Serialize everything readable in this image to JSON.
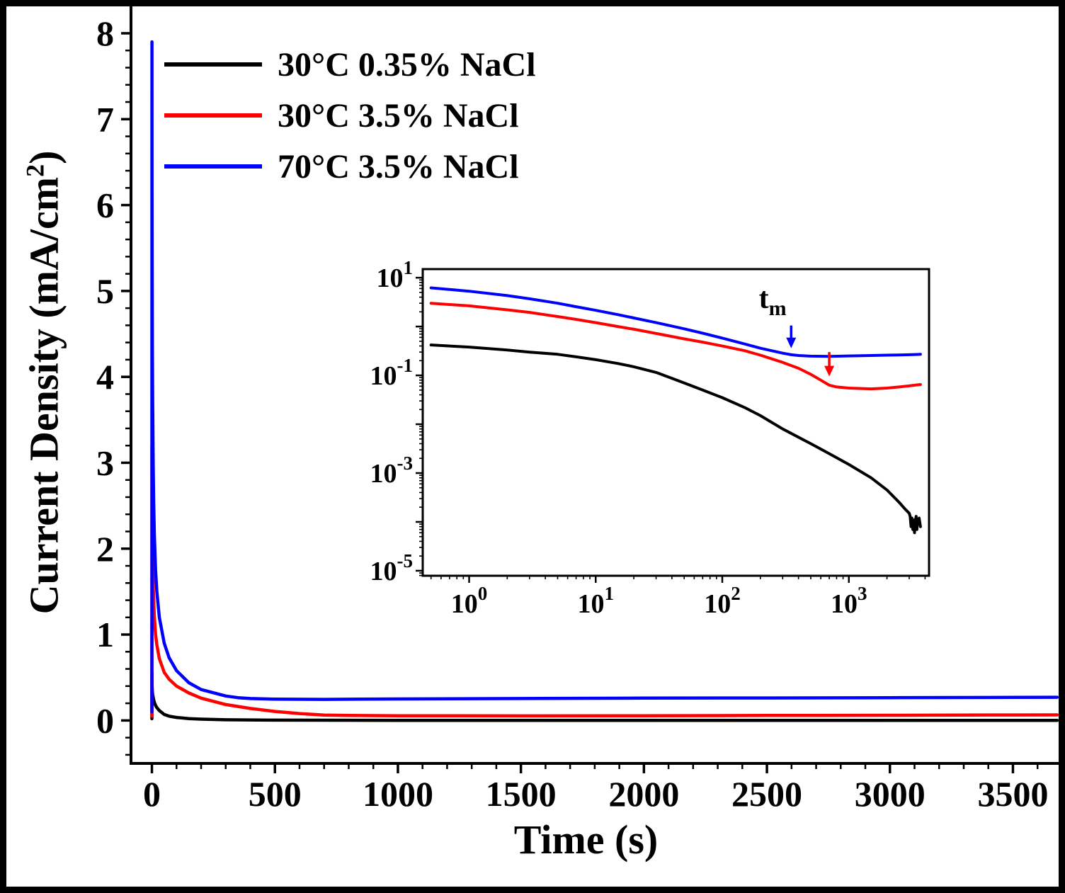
{
  "figure": {
    "background": "#ffffff",
    "border_color": "#000000"
  },
  "chart_data": {
    "type": "line",
    "title": "",
    "xlabel": {
      "text": "Time (s)"
    },
    "ylabel": {
      "prefix": "Current Density (mA/cm",
      "sup": "2",
      "suffix": ")"
    },
    "legend_position": "top-left",
    "main_axes": {
      "xscale": "linear",
      "yscale": "linear",
      "xlim": [
        -85,
        3680
      ],
      "ylim": [
        -0.5,
        8
      ],
      "xticks": [
        0,
        500,
        1000,
        1500,
        2000,
        2500,
        3000,
        3500
      ],
      "x_minor_step": 100,
      "yticks": [
        0,
        1,
        2,
        3,
        4,
        5,
        6,
        7,
        8
      ],
      "y_minor_step": 0.2,
      "grid": false
    },
    "inset_axes": {
      "xscale": "log",
      "yscale": "log",
      "xlim": [
        0.43,
        4300
      ],
      "ylim": [
        7.9e-06,
        15
      ],
      "x_labeled_exponents": [
        0,
        1,
        2,
        3
      ],
      "y_labeled_exponents": [
        -5,
        -3,
        -1,
        1
      ],
      "annotation": {
        "text": "t",
        "sub": "m",
        "x": 250,
        "y": 2.4
      },
      "arrows": [
        {
          "color": "#0000ff",
          "x": 350,
          "y_from": 1.05,
          "y_to": 0.36
        },
        {
          "color": "#ff0000",
          "x": 700,
          "y_from": 0.3,
          "y_to": 0.095
        }
      ]
    },
    "series": [
      {
        "name": "30°C 0.35% NaCl",
        "color": "#000000",
        "points": [
          [
            0.05,
            0.02
          ],
          [
            0.2,
            0.55
          ],
          [
            0.5,
            0.42
          ],
          [
            1,
            0.38
          ],
          [
            2,
            0.33
          ],
          [
            3,
            0.3
          ],
          [
            5,
            0.27
          ],
          [
            7,
            0.24
          ],
          [
            10,
            0.21
          ],
          [
            15,
            0.175
          ],
          [
            20,
            0.15
          ],
          [
            30,
            0.115
          ],
          [
            50,
            0.07
          ],
          [
            70,
            0.05
          ],
          [
            100,
            0.035
          ],
          [
            150,
            0.022
          ],
          [
            200,
            0.015
          ],
          [
            300,
            0.008
          ],
          [
            500,
            0.004
          ],
          [
            700,
            0.0025
          ],
          [
            1000,
            0.0015
          ],
          [
            1500,
            0.0008
          ],
          [
            2000,
            0.00045
          ],
          [
            2500,
            0.00025
          ],
          [
            2800,
            0.00018
          ],
          [
            3000,
            0.00015
          ],
          [
            3050,
            0.00013
          ],
          [
            3100,
            8e-05
          ],
          [
            3150,
            0.00012
          ],
          [
            3200,
            7e-05
          ],
          [
            3250,
            0.00011
          ],
          [
            3300,
            6e-05
          ],
          [
            3350,
            0.0001
          ],
          [
            3400,
            0.00013
          ],
          [
            3450,
            7e-05
          ],
          [
            3500,
            0.0001
          ],
          [
            3590,
            0.00012
          ],
          [
            3680,
            8e-05
          ]
        ]
      },
      {
        "name": "30°C 3.5% NaCl",
        "color": "#ff0000",
        "points": [
          [
            0.05,
            0.05
          ],
          [
            0.2,
            3.2
          ],
          [
            0.5,
            3.0
          ],
          [
            1,
            2.65
          ],
          [
            2,
            2.2
          ],
          [
            3,
            1.95
          ],
          [
            5,
            1.6
          ],
          [
            7,
            1.4
          ],
          [
            10,
            1.2
          ],
          [
            15,
            1.0
          ],
          [
            20,
            0.88
          ],
          [
            30,
            0.72
          ],
          [
            50,
            0.56
          ],
          [
            70,
            0.48
          ],
          [
            100,
            0.4
          ],
          [
            150,
            0.32
          ],
          [
            200,
            0.26
          ],
          [
            300,
            0.185
          ],
          [
            400,
            0.14
          ],
          [
            500,
            0.105
          ],
          [
            600,
            0.08
          ],
          [
            700,
            0.063
          ],
          [
            800,
            0.058
          ],
          [
            1000,
            0.055
          ],
          [
            1500,
            0.053
          ],
          [
            2000,
            0.055
          ],
          [
            2500,
            0.058
          ],
          [
            3000,
            0.061
          ],
          [
            3500,
            0.064
          ],
          [
            3680,
            0.065
          ]
        ]
      },
      {
        "name": "70°C 3.5% NaCl",
        "color": "#0000ff",
        "points": [
          [
            0.05,
            0.1
          ],
          [
            0.2,
            7.9
          ],
          [
            0.5,
            6.2
          ],
          [
            1,
            5.3
          ],
          [
            2,
            4.3
          ],
          [
            3,
            3.7
          ],
          [
            5,
            3.0
          ],
          [
            7,
            2.55
          ],
          [
            10,
            2.15
          ],
          [
            15,
            1.75
          ],
          [
            20,
            1.5
          ],
          [
            30,
            1.2
          ],
          [
            50,
            0.9
          ],
          [
            70,
            0.73
          ],
          [
            100,
            0.58
          ],
          [
            150,
            0.44
          ],
          [
            200,
            0.36
          ],
          [
            300,
            0.285
          ],
          [
            350,
            0.265
          ],
          [
            400,
            0.255
          ],
          [
            500,
            0.248
          ],
          [
            700,
            0.245
          ],
          [
            1000,
            0.25
          ],
          [
            1500,
            0.255
          ],
          [
            2000,
            0.26
          ],
          [
            2500,
            0.262
          ],
          [
            3000,
            0.265
          ],
          [
            3500,
            0.268
          ],
          [
            3680,
            0.27
          ]
        ]
      }
    ]
  }
}
